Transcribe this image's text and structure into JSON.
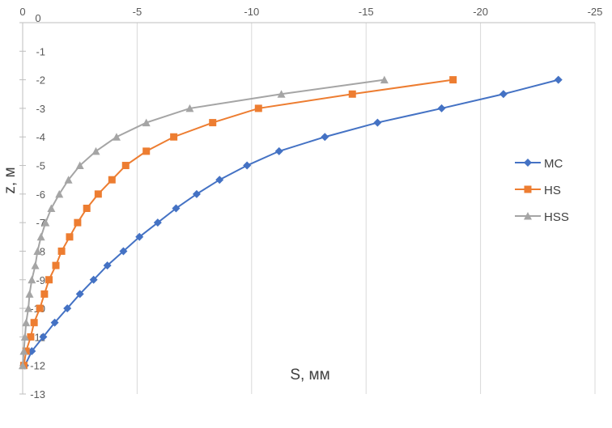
{
  "chart_data": {
    "type": "line",
    "title": "",
    "xlabel": "S, мм",
    "ylabel": "z, м",
    "xlim": [
      0,
      -25
    ],
    "ylim": [
      0,
      -13
    ],
    "x_reversed": true,
    "x_axis_position": "top",
    "x_ticks": [
      0,
      -5,
      -10,
      -15,
      -20,
      -25
    ],
    "y_ticks": [
      0,
      -1,
      -2,
      -3,
      -4,
      -5,
      -6,
      -7,
      -8,
      -9,
      -10,
      -11,
      -12,
      -13
    ],
    "x_tick_labels": [
      "0",
      "-5",
      "-10",
      "-15",
      "-20",
      "-25"
    ],
    "y_tick_labels": [
      "0",
      "-1",
      "-2",
      "-3",
      "-4",
      "-5",
      "-6",
      "-7",
      "-8",
      "-9",
      "-10",
      "-11",
      "-12",
      "-13"
    ],
    "grid": "vertical",
    "legend_position": "right",
    "z": [
      -2,
      -2.5,
      -3,
      -3.5,
      -4,
      -4.5,
      -5,
      -5.5,
      -6,
      -6.5,
      -7,
      -7.5,
      -8,
      -8.5,
      -9,
      -9.5,
      -10,
      -10.5,
      -11,
      -11.5,
      -12
    ],
    "series": [
      {
        "name": "MC",
        "color": "#4472C4",
        "marker": "diamond",
        "s": [
          -23.4,
          -21.0,
          -18.3,
          -15.5,
          -13.2,
          -11.2,
          -9.8,
          -8.6,
          -7.6,
          -6.7,
          -5.9,
          -5.1,
          -4.4,
          -3.7,
          -3.1,
          -2.5,
          -1.95,
          -1.4,
          -0.9,
          -0.4,
          -0.1
        ]
      },
      {
        "name": "HS",
        "color": "#ED7D31",
        "marker": "square",
        "s": [
          -18.8,
          -14.4,
          -10.3,
          -8.3,
          -6.6,
          -5.4,
          -4.5,
          -3.9,
          -3.3,
          -2.8,
          -2.4,
          -2.05,
          -1.7,
          -1.45,
          -1.15,
          -0.95,
          -0.75,
          -0.5,
          -0.35,
          -0.15,
          -0.05
        ]
      },
      {
        "name": "HSS",
        "color": "#A5A5A5",
        "marker": "triangle",
        "s": [
          -15.8,
          -11.3,
          -7.3,
          -5.4,
          -4.1,
          -3.2,
          -2.5,
          -2.0,
          -1.6,
          -1.25,
          -1.0,
          -0.8,
          -0.65,
          -0.55,
          -0.4,
          -0.3,
          -0.25,
          -0.15,
          -0.1,
          -0.05,
          0
        ]
      }
    ]
  }
}
